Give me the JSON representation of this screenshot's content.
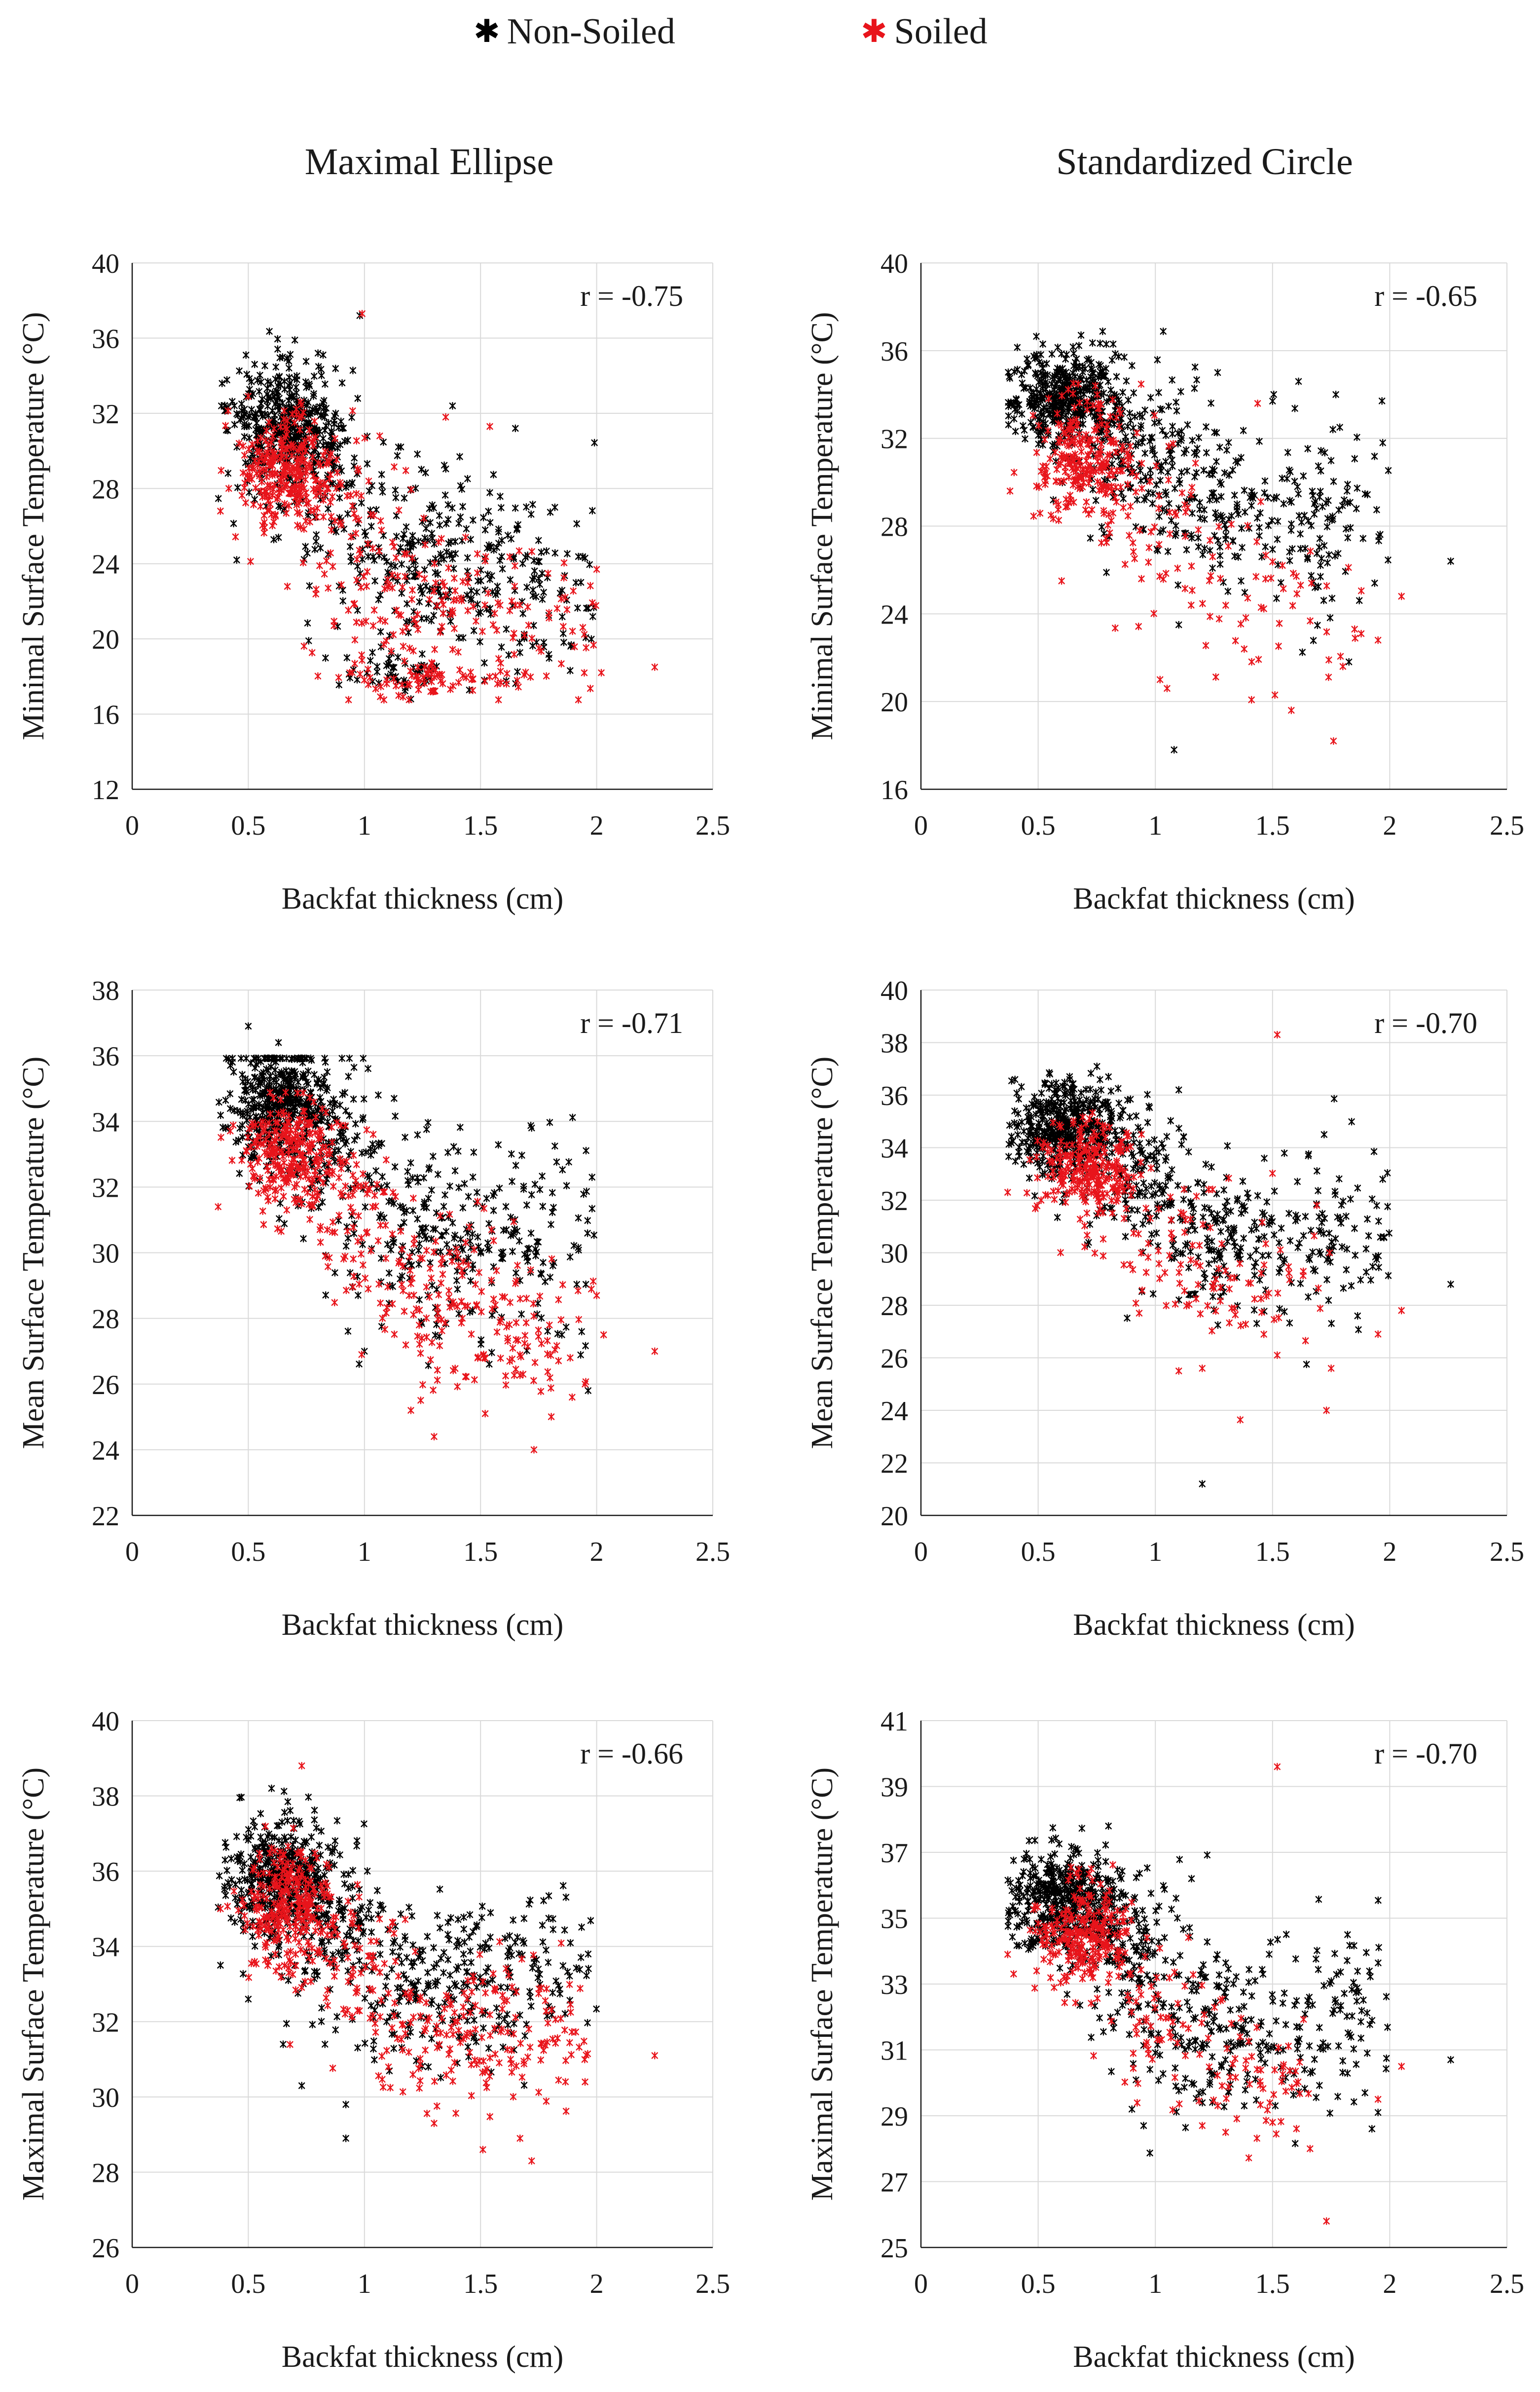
{
  "legend": {
    "items": [
      {
        "label": "Non-Soiled",
        "color": "#000000"
      },
      {
        "label": "Soiled",
        "color": "#e8141b"
      }
    ]
  },
  "columns": [
    "Maximal Ellipse",
    "Standardized Circle"
  ],
  "chart_data": [
    {
      "type": "scatter",
      "column": "Maximal Ellipse",
      "title": "",
      "xlabel": "Backfat thickness (cm)",
      "ylabel": "Minimal Surface Temperature (°C)",
      "xlim": [
        0,
        2.5
      ],
      "xticks": [
        "0",
        "0.5",
        "1",
        "1.5",
        "2",
        "2.5"
      ],
      "ylim": [
        12,
        40
      ],
      "yticks": [
        "12",
        "16",
        "20",
        "24",
        "28",
        "32",
        "36",
        "40"
      ],
      "annotation": "r = -0.75",
      "grid": true,
      "series": [
        {
          "name": "Non-Soiled",
          "clusters": [
            {
              "cx": 0.64,
              "cy": 31.5,
              "sx": 0.11,
              "sy": 1.5,
              "n": 380
            },
            {
              "cx": 0.82,
              "cy": 29.5,
              "sx": 0.12,
              "sy": 2.5,
              "n": 110
            },
            {
              "cx": 1.25,
              "cy": 24.5,
              "sx": 0.2,
              "sy": 2.8,
              "n": 220
            },
            {
              "cx": 1.7,
              "cy": 22.5,
              "sx": 0.18,
              "sy": 2.6,
              "n": 110
            },
            {
              "cx": 1.15,
              "cy": 18.3,
              "sx": 0.15,
              "sy": 0.5,
              "n": 40
            }
          ],
          "points": [
            [
              0.49,
              35.1
            ],
            [
              0.45,
              24.2
            ],
            [
              0.98,
              37.2
            ],
            [
              1.2,
              16.8
            ],
            [
              0.76,
              19.9
            ],
            [
              1.65,
              31.2
            ],
            [
              1.82,
              27.0
            ],
            [
              1.95,
              24.3
            ],
            [
              0.8,
              35.2
            ]
          ]
        },
        {
          "name": "Soiled",
          "clusters": [
            {
              "cx": 0.66,
              "cy": 29.0,
              "sx": 0.1,
              "sy": 1.4,
              "n": 260
            },
            {
              "cx": 0.9,
              "cy": 27.0,
              "sx": 0.12,
              "sy": 2.2,
              "n": 60
            },
            {
              "cx": 1.3,
              "cy": 21.5,
              "sx": 0.22,
              "sy": 2.4,
              "n": 150
            },
            {
              "cx": 1.25,
              "cy": 17.8,
              "sx": 0.25,
              "sy": 0.4,
              "n": 60
            },
            {
              "cx": 1.85,
              "cy": 20.5,
              "sx": 0.15,
              "sy": 2.0,
              "n": 30
            }
          ],
          "points": [
            [
              0.99,
              37.3
            ],
            [
              1.35,
              31.8
            ],
            [
              1.54,
              31.3
            ],
            [
              2.25,
              18.5
            ],
            [
              2.02,
              18.2
            ],
            [
              2.0,
              23.7
            ],
            [
              0.38,
              26.8
            ]
          ]
        }
      ]
    },
    {
      "type": "scatter",
      "column": "Standardized Circle",
      "title": "",
      "xlabel": "Backfat thickness (cm)",
      "ylabel": "Minimal Surface Temperature (°C)",
      "xlim": [
        0,
        2.5
      ],
      "xticks": [
        "0",
        "0.5",
        "1",
        "1.5",
        "2",
        "2.5"
      ],
      "ylim": [
        16,
        40
      ],
      "yticks": [
        "16",
        "20",
        "24",
        "28",
        "32",
        "36",
        "40"
      ],
      "annotation": "r = -0.65",
      "grid": true,
      "series": [
        {
          "name": "Non-Soiled",
          "clusters": [
            {
              "cx": 0.62,
              "cy": 33.8,
              "sx": 0.12,
              "sy": 1.1,
              "n": 420
            },
            {
              "cx": 0.9,
              "cy": 31.5,
              "sx": 0.14,
              "sy": 1.7,
              "n": 140
            },
            {
              "cx": 1.3,
              "cy": 29.0,
              "sx": 0.2,
              "sy": 2.0,
              "n": 180
            },
            {
              "cx": 1.75,
              "cy": 28.5,
              "sx": 0.15,
              "sy": 2.4,
              "n": 80
            }
          ],
          "points": [
            [
              1.08,
              17.8
            ],
            [
              2.26,
              26.4
            ],
            [
              0.52,
              36.3
            ],
            [
              0.82,
              36.3
            ],
            [
              1.5,
              33.7
            ],
            [
              1.77,
              34.0
            ],
            [
              1.97,
              31.8
            ],
            [
              1.1,
              23.5
            ]
          ]
        },
        {
          "name": "Soiled",
          "clusters": [
            {
              "cx": 0.7,
              "cy": 31.2,
              "sx": 0.1,
              "sy": 1.3,
              "n": 230
            },
            {
              "cx": 1.0,
              "cy": 28.5,
              "sx": 0.15,
              "sy": 2.0,
              "n": 60
            },
            {
              "cx": 1.4,
              "cy": 25.5,
              "sx": 0.22,
              "sy": 2.0,
              "n": 60
            }
          ],
          "points": [
            [
              0.38,
              29.6
            ],
            [
              0.6,
              25.5
            ],
            [
              1.02,
              21.0
            ],
            [
              1.05,
              20.6
            ],
            [
              1.51,
              20.3
            ],
            [
              1.58,
              19.6
            ],
            [
              1.74,
              21.9
            ],
            [
              1.76,
              18.2
            ],
            [
              1.8,
              21.6
            ],
            [
              2.05,
              24.8
            ],
            [
              1.85,
              23.3
            ],
            [
              1.95,
              22.8
            ]
          ]
        }
      ]
    },
    {
      "type": "scatter",
      "column": "Maximal Ellipse",
      "title": "",
      "xlabel": "Backfat thickness (cm)",
      "ylabel": "Mean Surface Temperature (°C)",
      "xlim": [
        0,
        2.5
      ],
      "xticks": [
        "0",
        "0.5",
        "1",
        "1.5",
        "2",
        "2.5"
      ],
      "ylim": [
        22,
        38
      ],
      "yticks": [
        "22",
        "24",
        "26",
        "28",
        "30",
        "32",
        "34",
        "36",
        "38"
      ],
      "annotation": "r = -0.71",
      "grid": true,
      "series": [
        {
          "name": "Non-Soiled",
          "clusters": [
            {
              "cx": 0.63,
              "cy": 34.6,
              "sx": 0.11,
              "sy": 0.9,
              "n": 400
            },
            {
              "cx": 0.88,
              "cy": 33.0,
              "sx": 0.13,
              "sy": 1.3,
              "n": 120
            },
            {
              "cx": 1.3,
              "cy": 30.5,
              "sx": 0.2,
              "sy": 1.5,
              "n": 200
            },
            {
              "cx": 1.75,
              "cy": 30.5,
              "sx": 0.15,
              "sy": 1.6,
              "n": 80
            }
          ],
          "points": [
            [
              0.5,
              36.9
            ],
            [
              0.63,
              36.4
            ],
            [
              1.72,
              33.8
            ],
            [
              1.98,
              32.3
            ],
            [
              1.85,
              27.5
            ],
            [
              1.0,
              27.0
            ]
          ]
        },
        {
          "name": "Soiled",
          "clusters": [
            {
              "cx": 0.68,
              "cy": 33.0,
              "sx": 0.1,
              "sy": 0.8,
              "n": 260
            },
            {
              "cx": 0.95,
              "cy": 31.0,
              "sx": 0.13,
              "sy": 1.2,
              "n": 70
            },
            {
              "cx": 1.35,
              "cy": 28.5,
              "sx": 0.2,
              "sy": 1.3,
              "n": 140
            },
            {
              "cx": 1.7,
              "cy": 27.0,
              "sx": 0.15,
              "sy": 1.0,
              "n": 50
            }
          ],
          "points": [
            [
              0.37,
              31.4
            ],
            [
              1.3,
              24.4
            ],
            [
              1.73,
              24.0
            ],
            [
              1.52,
              25.1
            ],
            [
              2.25,
              27.0
            ],
            [
              2.03,
              27.5
            ],
            [
              2.0,
              28.7
            ],
            [
              1.95,
              26.0
            ],
            [
              1.2,
              25.2
            ]
          ]
        }
      ]
    },
    {
      "type": "scatter",
      "column": "Standardized Circle",
      "title": "",
      "xlabel": "Backfat thickness (cm)",
      "ylabel": "Mean Surface Temperature (°C)",
      "xlim": [
        0,
        2.5
      ],
      "xticks": [
        "0",
        "0.5",
        "1",
        "1.5",
        "2",
        "2.5"
      ],
      "ylim": [
        20,
        40
      ],
      "yticks": [
        "20",
        "22",
        "24",
        "26",
        "28",
        "30",
        "32",
        "34",
        "36",
        "38",
        "40"
      ],
      "annotation": "r = -0.70",
      "grid": true,
      "series": [
        {
          "name": "Non-Soiled",
          "clusters": [
            {
              "cx": 0.62,
              "cy": 34.8,
              "sx": 0.12,
              "sy": 0.9,
              "n": 420
            },
            {
              "cx": 0.9,
              "cy": 33.0,
              "sx": 0.13,
              "sy": 1.3,
              "n": 140
            },
            {
              "cx": 1.3,
              "cy": 30.5,
              "sx": 0.2,
              "sy": 1.5,
              "n": 180
            },
            {
              "cx": 1.75,
              "cy": 30.5,
              "sx": 0.15,
              "sy": 1.5,
              "n": 80
            }
          ],
          "points": [
            [
              1.2,
              21.2
            ],
            [
              2.26,
              28.8
            ],
            [
              0.55,
              36.8
            ],
            [
              0.8,
              36.7
            ],
            [
              1.72,
              34.5
            ],
            [
              1.97,
              32.8
            ],
            [
              1.1,
              36.2
            ]
          ]
        },
        {
          "name": "Soiled",
          "clusters": [
            {
              "cx": 0.7,
              "cy": 33.2,
              "sx": 0.1,
              "sy": 0.8,
              "n": 240
            },
            {
              "cx": 1.0,
              "cy": 30.5,
              "sx": 0.14,
              "sy": 1.3,
              "n": 60
            },
            {
              "cx": 1.4,
              "cy": 28.5,
              "sx": 0.2,
              "sy": 1.3,
              "n": 60
            }
          ],
          "points": [
            [
              1.52,
              38.3
            ],
            [
              0.37,
              32.3
            ],
            [
              1.2,
              25.6
            ],
            [
              1.73,
              24.0
            ],
            [
              1.75,
              25.6
            ],
            [
              2.05,
              27.8
            ],
            [
              1.95,
              26.9
            ],
            [
              1.1,
              25.5
            ],
            [
              1.52,
              26.1
            ]
          ]
        }
      ]
    },
    {
      "type": "scatter",
      "column": "Maximal Ellipse",
      "title": "",
      "xlabel": "Backfat thickness (cm)",
      "ylabel": "Maximal Surface Temperature  (°C)",
      "xlim": [
        0,
        2.5
      ],
      "xticks": [
        "0",
        "0.5",
        "1",
        "1.5",
        "2",
        "2.5"
      ],
      "ylim": [
        26,
        40
      ],
      "yticks": [
        "26",
        "28",
        "30",
        "32",
        "34",
        "36",
        "38",
        "40"
      ],
      "annotation": "r = -0.66",
      "grid": true,
      "series": [
        {
          "name": "Non-Soiled",
          "clusters": [
            {
              "cx": 0.63,
              "cy": 35.8,
              "sx": 0.11,
              "sy": 0.8,
              "n": 400
            },
            {
              "cx": 0.88,
              "cy": 34.5,
              "sx": 0.13,
              "sy": 1.2,
              "n": 120
            },
            {
              "cx": 1.3,
              "cy": 33.0,
              "sx": 0.2,
              "sy": 1.2,
              "n": 200
            },
            {
              "cx": 1.75,
              "cy": 33.5,
              "sx": 0.15,
              "sy": 1.2,
              "n": 80
            }
          ],
          "points": [
            [
              0.6,
              38.2
            ],
            [
              0.38,
              33.5
            ],
            [
              0.92,
              28.9
            ],
            [
              0.92,
              29.8
            ],
            [
              0.73,
              30.3
            ],
            [
              0.65,
              31.4
            ],
            [
              0.83,
              31.4
            ],
            [
              0.5,
              32.6
            ]
          ]
        },
        {
          "name": "Soiled",
          "clusters": [
            {
              "cx": 0.68,
              "cy": 35.0,
              "sx": 0.1,
              "sy": 0.8,
              "n": 260
            },
            {
              "cx": 0.95,
              "cy": 33.5,
              "sx": 0.13,
              "sy": 1.0,
              "n": 70
            },
            {
              "cx": 1.35,
              "cy": 31.7,
              "sx": 0.2,
              "sy": 0.9,
              "n": 140
            },
            {
              "cx": 1.75,
              "cy": 31.8,
              "sx": 0.15,
              "sy": 0.9,
              "n": 50
            }
          ],
          "points": [
            [
              0.73,
              38.8
            ],
            [
              2.25,
              31.1
            ],
            [
              1.51,
              28.6
            ],
            [
              1.72,
              28.3
            ],
            [
              1.67,
              28.9
            ],
            [
              1.95,
              30.4
            ],
            [
              1.3,
              29.3
            ],
            [
              0.38,
              35.0
            ]
          ]
        }
      ]
    },
    {
      "type": "scatter",
      "column": "Standardized Circle",
      "title": "",
      "xlabel": "Backfat thickness (cm)",
      "ylabel": "Maximal Surface Temperature  (°C)",
      "xlim": [
        0,
        2.5
      ],
      "xticks": [
        "0",
        "0.5",
        "1",
        "1.5",
        "2",
        "2.5"
      ],
      "ylim": [
        25,
        41
      ],
      "yticks": [
        "25",
        "27",
        "29",
        "31",
        "33",
        "35",
        "37",
        "39",
        "41"
      ],
      "annotation": "r = -0.70",
      "grid": true,
      "series": [
        {
          "name": "Non-Soiled",
          "clusters": [
            {
              "cx": 0.62,
              "cy": 35.5,
              "sx": 0.12,
              "sy": 0.8,
              "n": 420
            },
            {
              "cx": 0.9,
              "cy": 34.0,
              "sx": 0.13,
              "sy": 1.3,
              "n": 140
            },
            {
              "cx": 1.3,
              "cy": 31.5,
              "sx": 0.2,
              "sy": 1.2,
              "n": 180
            },
            {
              "cx": 1.75,
              "cy": 32.0,
              "sx": 0.15,
              "sy": 1.5,
              "n": 80
            }
          ],
          "points": [
            [
              0.8,
              37.8
            ],
            [
              2.26,
              30.7
            ],
            [
              0.95,
              28.7
            ],
            [
              0.9,
              29.2
            ],
            [
              1.95,
              29.1
            ],
            [
              1.82,
              34.5
            ]
          ]
        },
        {
          "name": "Soiled",
          "clusters": [
            {
              "cx": 0.7,
              "cy": 34.5,
              "sx": 0.1,
              "sy": 0.8,
              "n": 240
            },
            {
              "cx": 1.0,
              "cy": 32.0,
              "sx": 0.14,
              "sy": 1.3,
              "n": 60
            },
            {
              "cx": 1.45,
              "cy": 30.5,
              "sx": 0.2,
              "sy": 1.0,
              "n": 60
            }
          ],
          "points": [
            [
              1.52,
              39.6
            ],
            [
              1.73,
              25.8
            ],
            [
              1.66,
              28.0
            ],
            [
              1.5,
              28.8
            ],
            [
              1.3,
              28.5
            ],
            [
              0.37,
              33.9
            ],
            [
              2.05,
              30.5
            ],
            [
              1.95,
              29.5
            ],
            [
              1.2,
              28.7
            ]
          ]
        }
      ]
    }
  ]
}
